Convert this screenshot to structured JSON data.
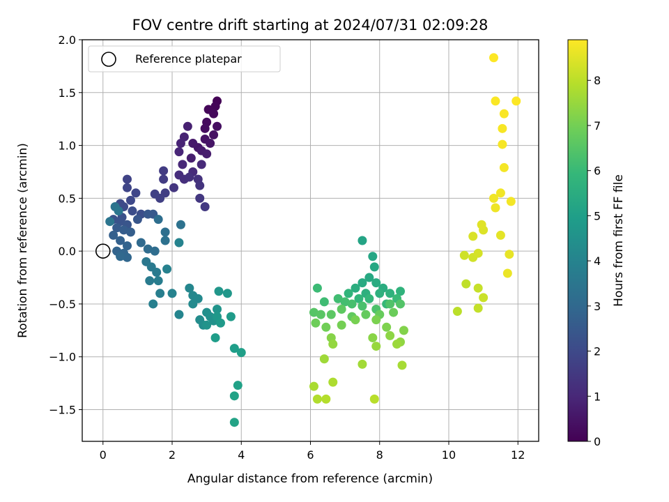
{
  "chart_data": {
    "type": "scatter",
    "title": "FOV centre drift starting at 2024/07/31 02:09:28",
    "xlabel": "Angular distance from reference (arcmin)",
    "ylabel": "Rotation from reference (arcmin)",
    "xlim": [
      -0.6,
      12.6
    ],
    "ylim": [
      -1.8,
      2.0
    ],
    "xticks": [
      0,
      2,
      4,
      6,
      8,
      10,
      12
    ],
    "yticks": [
      -1.5,
      -1.0,
      -0.5,
      0.0,
      0.5,
      1.0,
      1.5,
      2.0
    ],
    "xtick_labels": [
      "0",
      "2",
      "4",
      "6",
      "8",
      "10",
      "12"
    ],
    "ytick_labels": [
      "−1.5",
      "−1.0",
      "−0.5",
      "0.0",
      "0.5",
      "1.0",
      "1.5",
      "2.0"
    ],
    "grid": true,
    "legend": {
      "position": "top-left",
      "entries": [
        {
          "label": "Reference platepar",
          "marker": "open-circle"
        }
      ]
    },
    "reference_point": {
      "x": 0,
      "y": 0
    },
    "colorbar": {
      "label": "Hours from first FF file",
      "range": [
        0,
        8.9
      ],
      "ticks": [
        0,
        1,
        2,
        3,
        4,
        5,
        6,
        7,
        8
      ],
      "tick_labels": [
        "0",
        "1",
        "2",
        "3",
        "4",
        "5",
        "6",
        "7",
        "8"
      ],
      "colormap": "viridis",
      "colors": [
        "#440154",
        "#482878",
        "#3e4989",
        "#31688e",
        "#26828e",
        "#1f9e89",
        "#35b779",
        "#6ece58",
        "#b5de2b",
        "#fde725"
      ]
    },
    "points": [
      [
        3.3,
        1.42,
        0.05
      ],
      [
        3.25,
        1.37,
        0.1
      ],
      [
        3.05,
        1.34,
        0.15
      ],
      [
        3.2,
        1.3,
        0.2
      ],
      [
        3.0,
        1.22,
        0.25
      ],
      [
        2.95,
        1.16,
        0.3
      ],
      [
        3.3,
        1.18,
        0.35
      ],
      [
        3.2,
        1.1,
        0.4
      ],
      [
        2.95,
        1.06,
        0.45
      ],
      [
        3.1,
        1.02,
        0.5
      ],
      [
        2.75,
        0.98,
        0.55
      ],
      [
        2.6,
        1.02,
        0.6
      ],
      [
        2.85,
        0.95,
        0.65
      ],
      [
        3.0,
        0.92,
        0.7
      ],
      [
        2.55,
        0.88,
        0.75
      ],
      [
        2.45,
        1.18,
        0.8
      ],
      [
        2.35,
        1.08,
        0.85
      ],
      [
        2.25,
        1.02,
        0.9
      ],
      [
        2.2,
        0.94,
        0.95
      ],
      [
        2.3,
        0.82,
        1.0
      ],
      [
        2.85,
        0.82,
        1.05
      ],
      [
        2.6,
        0.75,
        1.1
      ],
      [
        2.2,
        0.72,
        1.15
      ],
      [
        2.35,
        0.68,
        1.2
      ],
      [
        2.5,
        0.7,
        1.25
      ],
      [
        2.75,
        0.68,
        1.3
      ],
      [
        2.8,
        0.62,
        1.35
      ],
      [
        2.05,
        0.6,
        1.4
      ],
      [
        2.8,
        0.5,
        1.45
      ],
      [
        2.95,
        0.42,
        1.5
      ],
      [
        1.75,
        0.76,
        1.55
      ],
      [
        1.75,
        0.68,
        1.6
      ],
      [
        1.8,
        0.55,
        1.65
      ],
      [
        1.65,
        0.5,
        1.7
      ],
      [
        1.5,
        0.54,
        1.75
      ],
      [
        0.7,
        0.68,
        1.8
      ],
      [
        0.7,
        0.6,
        1.85
      ],
      [
        0.95,
        0.55,
        1.9
      ],
      [
        0.8,
        0.48,
        1.95
      ],
      [
        0.5,
        0.45,
        2.0
      ],
      [
        0.6,
        0.42,
        2.05
      ],
      [
        0.85,
        0.38,
        2.1
      ],
      [
        1.1,
        0.35,
        2.15
      ],
      [
        0.55,
        0.32,
        2.2
      ],
      [
        0.3,
        0.3,
        2.25
      ],
      [
        0.5,
        0.28,
        2.3
      ],
      [
        0.7,
        0.25,
        2.35
      ],
      [
        1.0,
        0.3,
        2.4
      ],
      [
        1.3,
        0.35,
        2.45
      ],
      [
        1.45,
        0.35,
        2.5
      ],
      [
        0.4,
        0.22,
        2.55
      ],
      [
        0.6,
        0.2,
        2.6
      ],
      [
        0.8,
        0.18,
        2.65
      ],
      [
        0.3,
        0.15,
        2.7
      ],
      [
        0.5,
        0.1,
        2.75
      ],
      [
        0.7,
        0.05,
        2.8
      ],
      [
        0.4,
        0.0,
        2.85
      ],
      [
        0.6,
        -0.02,
        2.9
      ],
      [
        0.7,
        -0.06,
        2.95
      ],
      [
        0.5,
        -0.05,
        3.0
      ],
      [
        1.1,
        0.08,
        3.05
      ],
      [
        1.3,
        0.02,
        3.1
      ],
      [
        1.5,
        0.0,
        3.15
      ],
      [
        1.6,
        0.3,
        3.2
      ],
      [
        1.8,
        0.18,
        3.25
      ],
      [
        1.8,
        0.1,
        3.3
      ],
      [
        2.25,
        0.25,
        3.35
      ],
      [
        0.35,
        0.42,
        3.4
      ],
      [
        0.2,
        0.28,
        3.45
      ],
      [
        0.45,
        0.38,
        3.5
      ],
      [
        1.25,
        -0.1,
        3.55
      ],
      [
        1.4,
        -0.15,
        3.6
      ],
      [
        1.55,
        -0.2,
        3.65
      ],
      [
        1.35,
        -0.28,
        3.7
      ],
      [
        1.6,
        -0.28,
        3.75
      ],
      [
        1.65,
        -0.4,
        3.8
      ],
      [
        1.45,
        -0.5,
        3.85
      ],
      [
        1.85,
        -0.17,
        3.9
      ],
      [
        2.0,
        -0.4,
        3.95
      ],
      [
        2.2,
        0.08,
        4.0
      ],
      [
        2.2,
        -0.6,
        4.05
      ],
      [
        2.5,
        -0.35,
        4.1
      ],
      [
        2.6,
        -0.42,
        4.15
      ],
      [
        2.75,
        -0.45,
        4.2
      ],
      [
        2.6,
        -0.5,
        4.25
      ],
      [
        2.8,
        -0.65,
        4.3
      ],
      [
        2.9,
        -0.7,
        4.35
      ],
      [
        3.0,
        -0.58,
        4.4
      ],
      [
        3.1,
        -0.62,
        4.45
      ],
      [
        3.2,
        -0.66,
        4.5
      ],
      [
        3.0,
        -0.7,
        4.55
      ],
      [
        3.3,
        -0.55,
        4.6
      ],
      [
        3.35,
        -0.38,
        4.65
      ],
      [
        3.6,
        -0.4,
        4.7
      ],
      [
        3.3,
        -0.62,
        4.75
      ],
      [
        3.4,
        -0.68,
        4.8
      ],
      [
        3.7,
        -0.62,
        4.85
      ],
      [
        3.25,
        -0.82,
        4.9
      ],
      [
        3.8,
        -0.92,
        4.95
      ],
      [
        4.0,
        -0.96,
        5.0
      ],
      [
        3.9,
        -1.27,
        5.05
      ],
      [
        3.8,
        -1.37,
        5.1
      ],
      [
        3.8,
        -1.62,
        5.15
      ],
      [
        7.5,
        0.1,
        5.2
      ],
      [
        7.8,
        -0.05,
        5.25
      ],
      [
        7.85,
        -0.15,
        5.3
      ],
      [
        7.7,
        -0.25,
        5.35
      ],
      [
        7.5,
        -0.3,
        5.4
      ],
      [
        7.9,
        -0.3,
        5.45
      ],
      [
        8.1,
        -0.35,
        5.5
      ],
      [
        7.3,
        -0.35,
        5.55
      ],
      [
        7.6,
        -0.4,
        5.6
      ],
      [
        8.0,
        -0.4,
        5.65
      ],
      [
        8.3,
        -0.4,
        5.7
      ],
      [
        8.6,
        -0.38,
        5.75
      ],
      [
        7.1,
        -0.4,
        5.8
      ],
      [
        7.4,
        -0.45,
        5.85
      ],
      [
        7.7,
        -0.45,
        5.9
      ],
      [
        8.2,
        -0.5,
        5.95
      ],
      [
        8.5,
        -0.45,
        6.0
      ],
      [
        6.2,
        -0.35,
        6.05
      ],
      [
        6.4,
        -0.48,
        6.1
      ],
      [
        6.8,
        -0.45,
        6.15
      ],
      [
        7.0,
        -0.48,
        6.2
      ],
      [
        7.2,
        -0.5,
        6.25
      ],
      [
        7.5,
        -0.52,
        6.3
      ],
      [
        7.9,
        -0.55,
        6.35
      ],
      [
        8.3,
        -0.5,
        6.4
      ],
      [
        8.6,
        -0.5,
        6.45
      ],
      [
        6.1,
        -0.58,
        6.5
      ],
      [
        6.3,
        -0.6,
        6.55
      ],
      [
        6.6,
        -0.6,
        6.6
      ],
      [
        6.9,
        -0.55,
        6.65
      ],
      [
        7.2,
        -0.62,
        6.7
      ],
      [
        7.6,
        -0.6,
        6.75
      ],
      [
        8.0,
        -0.6,
        6.8
      ],
      [
        8.4,
        -0.58,
        6.85
      ],
      [
        6.15,
        -0.68,
        6.9
      ],
      [
        6.45,
        -0.72,
        6.95
      ],
      [
        6.9,
        -0.7,
        7.0
      ],
      [
        7.3,
        -0.65,
        7.05
      ],
      [
        7.9,
        -0.65,
        7.1
      ],
      [
        8.2,
        -0.72,
        7.15
      ],
      [
        8.7,
        -0.75,
        7.2
      ],
      [
        6.6,
        -0.82,
        7.25
      ],
      [
        7.8,
        -0.82,
        7.3
      ],
      [
        8.3,
        -0.8,
        7.35
      ],
      [
        8.6,
        -0.86,
        7.4
      ],
      [
        6.65,
        -0.88,
        7.45
      ],
      [
        7.9,
        -0.9,
        7.5
      ],
      [
        8.5,
        -0.88,
        7.55
      ],
      [
        6.4,
        -1.02,
        7.6
      ],
      [
        7.5,
        -1.07,
        7.65
      ],
      [
        8.65,
        -1.08,
        7.7
      ],
      [
        6.1,
        -1.28,
        7.75
      ],
      [
        6.65,
        -1.24,
        7.8
      ],
      [
        6.2,
        -1.4,
        7.85
      ],
      [
        6.45,
        -1.4,
        7.9
      ],
      [
        7.85,
        -1.4,
        7.95
      ],
      [
        10.25,
        -0.57,
        8.0
      ],
      [
        10.5,
        -0.31,
        8.05
      ],
      [
        10.85,
        -0.54,
        8.1
      ],
      [
        10.85,
        -0.35,
        8.15
      ],
      [
        11.0,
        -0.44,
        8.2
      ],
      [
        10.45,
        -0.04,
        8.25
      ],
      [
        10.7,
        -0.06,
        8.3
      ],
      [
        10.85,
        -0.02,
        8.35
      ],
      [
        10.7,
        0.14,
        8.4
      ],
      [
        11.0,
        0.2,
        8.45
      ],
      [
        10.95,
        0.25,
        8.5
      ],
      [
        11.5,
        0.15,
        8.55
      ],
      [
        11.75,
        -0.03,
        8.6
      ],
      [
        11.7,
        -0.21,
        8.65
      ],
      [
        11.35,
        0.41,
        8.7
      ],
      [
        11.3,
        0.5,
        8.72
      ],
      [
        11.5,
        0.55,
        8.74
      ],
      [
        11.8,
        0.47,
        8.76
      ],
      [
        11.6,
        0.79,
        8.78
      ],
      [
        11.55,
        1.01,
        8.8
      ],
      [
        11.55,
        1.16,
        8.82
      ],
      [
        11.6,
        1.3,
        8.84
      ],
      [
        11.35,
        1.42,
        8.86
      ],
      [
        11.95,
        1.42,
        8.88
      ],
      [
        11.3,
        1.83,
        8.9
      ]
    ]
  }
}
